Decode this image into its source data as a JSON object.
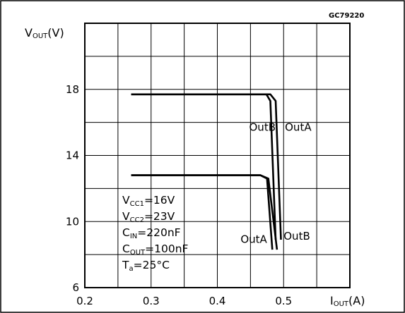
{
  "chart_data": {
    "type": "line",
    "figure_code": "GC79220",
    "ylabel": {
      "main": "V",
      "sub": "OUT",
      "unit": "(V)"
    },
    "xlabel": {
      "main": "I",
      "sub": "OUT",
      "unit": "(A)"
    },
    "xlim": [
      0.2,
      0.6
    ],
    "ylim": [
      6,
      22
    ],
    "x_ticks": [
      0.2,
      0.3,
      0.4,
      0.5
    ],
    "x_tick_labels": [
      "0.2",
      "0.3",
      "0.4",
      "0.5"
    ],
    "y_ticks": [
      6,
      10,
      14,
      18
    ],
    "y_tick_labels": [
      "6",
      "10",
      "14",
      "18"
    ],
    "grid": true,
    "series": [
      {
        "name": "OutB",
        "x": [
          0.27,
          0.474,
          0.48,
          0.488
        ],
        "y": [
          17.7,
          17.7,
          17.3,
          8.9
        ]
      },
      {
        "name": "OutA",
        "x": [
          0.27,
          0.48,
          0.488,
          0.496
        ],
        "y": [
          17.7,
          17.7,
          17.3,
          8.9
        ]
      },
      {
        "name": "OutA",
        "x": [
          0.27,
          0.465,
          0.475,
          0.483
        ],
        "y": [
          12.8,
          12.8,
          12.6,
          8.3
        ]
      },
      {
        "name": "OutB",
        "x": [
          0.27,
          0.465,
          0.477,
          0.49
        ],
        "y": [
          12.8,
          12.8,
          12.6,
          8.3
        ]
      }
    ],
    "curve_labels": [
      {
        "text": "OutB",
        "x": 0.448,
        "y": 15.5
      },
      {
        "text": "OutA",
        "x": 0.502,
        "y": 15.5
      },
      {
        "text": "OutA",
        "x": 0.435,
        "y": 8.7
      },
      {
        "text": "OutB",
        "x": 0.5,
        "y": 8.9
      }
    ],
    "conditions": [
      {
        "main": "V",
        "sub": "CC1",
        "value": "=16V"
      },
      {
        "main": "V",
        "sub": "CC2",
        "value": "=23V"
      },
      {
        "main": "C",
        "sub": "IN",
        "value": "=220nF"
      },
      {
        "main": "C",
        "sub": "OUT",
        "value": "=100nF"
      },
      {
        "main": "T",
        "sub": "a",
        "value": "=25°C"
      }
    ]
  }
}
